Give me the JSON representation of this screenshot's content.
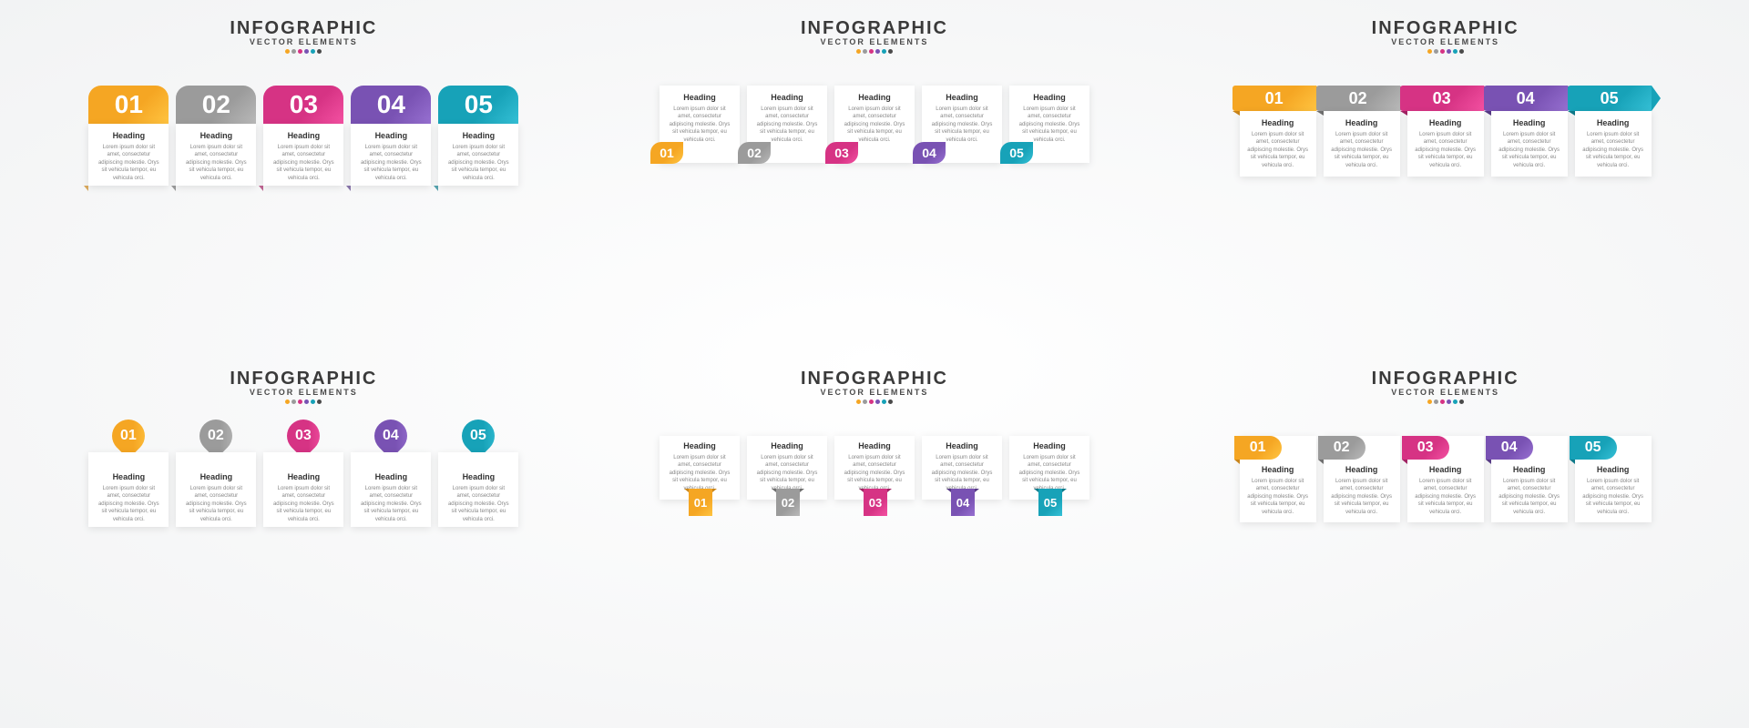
{
  "title": "INFOGRAPHIC",
  "subtitle": "VECTOR ELEMENTS",
  "dot_colors": [
    "#f5a623",
    "#9b9b9b",
    "#d63384",
    "#7952b3",
    "#17a2b8",
    "#4a4a4a"
  ],
  "items": [
    {
      "num": "01",
      "heading": "Heading",
      "body": "Lorem ipsum dolor sit amet, consectetur adipiscing molestie. Orys sit vehicula tempor, eu vehicula orci.",
      "color": "#f5a623",
      "dark": "#c9851a"
    },
    {
      "num": "02",
      "heading": "Heading",
      "body": "Lorem ipsum dolor sit amet, consectetur adipiscing molestie. Orys sit vehicula tempor, eu vehicula orci.",
      "color": "#9b9b9b",
      "dark": "#6f6f6f"
    },
    {
      "num": "03",
      "heading": "Heading",
      "body": "Lorem ipsum dolor sit amet, consectetur adipiscing molestie. Orys sit vehicula tempor, eu vehicula orci.",
      "color": "#d63384",
      "dark": "#a12363"
    },
    {
      "num": "04",
      "heading": "Heading",
      "body": "Lorem ipsum dolor sit amet, consectetur adipiscing molestie. Orys sit vehicula tempor, eu vehicula orci.",
      "color": "#7952b3",
      "dark": "#563a85"
    },
    {
      "num": "05",
      "heading": "Heading",
      "body": "Lorem ipsum dolor sit amet, consectetur adipiscing molestie. Orys sit vehicula tempor, eu vehicula orci.",
      "color": "#17a2b8",
      "dark": "#0f7a8a"
    }
  ]
}
